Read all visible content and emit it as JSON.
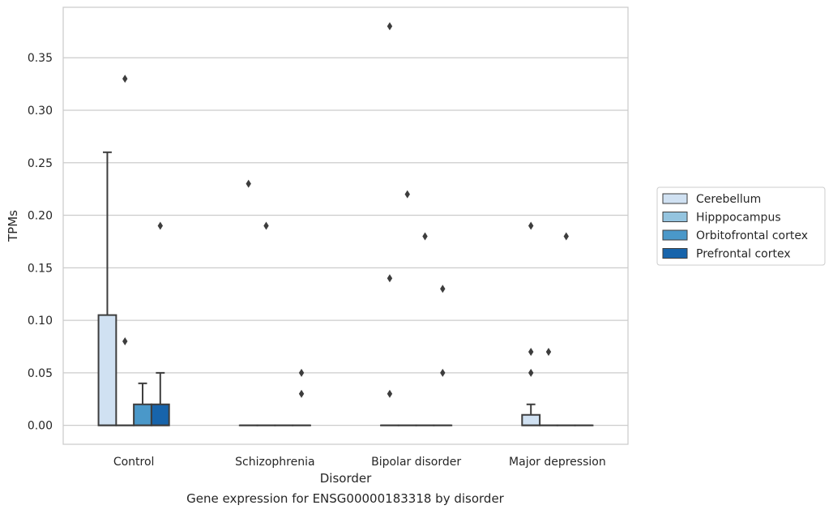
{
  "caption": "Gene expression for ENSG00000183318 by disorder",
  "chart_data": {
    "type": "box",
    "xlabel": "Disorder",
    "ylabel": "TPMs",
    "ylim": [
      -0.018,
      0.398
    ],
    "yticks": [
      "0.00",
      "0.05",
      "0.10",
      "0.15",
      "0.20",
      "0.25",
      "0.30",
      "0.35"
    ],
    "grid": "horizontal",
    "legend_position": "right",
    "categories": [
      "Control",
      "Schizophrenia",
      "Bipolar disorder",
      "Major depression"
    ],
    "series": [
      {
        "name": "Cerebellum",
        "color": "#d0e1f2",
        "boxes": [
          {
            "q1": 0,
            "median": 0,
            "q3": 0.105,
            "whisker_low": 0,
            "whisker_high": 0.26,
            "outliers": []
          },
          {
            "q1": 0,
            "median": 0,
            "q3": 0,
            "whisker_low": 0,
            "whisker_high": 0,
            "outliers": [
              0.23
            ]
          },
          {
            "q1": 0,
            "median": 0,
            "q3": 0,
            "whisker_low": 0,
            "whisker_high": 0,
            "outliers": [
              0.38,
              0.14,
              0.03
            ]
          },
          {
            "q1": 0,
            "median": 0,
            "q3": 0.01,
            "whisker_low": 0,
            "whisker_high": 0.02,
            "outliers": [
              0.19,
              0.07,
              0.05
            ]
          }
        ]
      },
      {
        "name": "Hipppocampus",
        "color": "#94c4df",
        "boxes": [
          {
            "q1": 0,
            "median": 0,
            "q3": 0,
            "whisker_low": 0,
            "whisker_high": 0,
            "outliers": [
              0.33,
              0.08
            ]
          },
          {
            "q1": 0,
            "median": 0,
            "q3": 0,
            "whisker_low": 0,
            "whisker_high": 0,
            "outliers": [
              0.19
            ]
          },
          {
            "q1": 0,
            "median": 0,
            "q3": 0,
            "whisker_low": 0,
            "whisker_high": 0,
            "outliers": [
              0.22
            ]
          },
          {
            "q1": 0,
            "median": 0,
            "q3": 0,
            "whisker_low": 0,
            "whisker_high": 0,
            "outliers": [
              0.07
            ]
          }
        ]
      },
      {
        "name": "Orbitofrontal cortex",
        "color": "#4a98c9",
        "boxes": [
          {
            "q1": 0,
            "median": 0,
            "q3": 0.02,
            "whisker_low": 0,
            "whisker_high": 0.04,
            "outliers": []
          },
          {
            "q1": 0,
            "median": 0,
            "q3": 0,
            "whisker_low": 0,
            "whisker_high": 0,
            "outliers": []
          },
          {
            "q1": 0,
            "median": 0,
            "q3": 0,
            "whisker_low": 0,
            "whisker_high": 0,
            "outliers": [
              0.18
            ]
          },
          {
            "q1": 0,
            "median": 0,
            "q3": 0,
            "whisker_low": 0,
            "whisker_high": 0,
            "outliers": [
              0.18
            ]
          }
        ]
      },
      {
        "name": "Prefrontal cortex",
        "color": "#1764ab",
        "boxes": [
          {
            "q1": 0,
            "median": 0,
            "q3": 0.02,
            "whisker_low": 0,
            "whisker_high": 0.05,
            "outliers": [
              0.19
            ]
          },
          {
            "q1": 0,
            "median": 0,
            "q3": 0,
            "whisker_low": 0,
            "whisker_high": 0,
            "outliers": [
              0.05,
              0.03
            ]
          },
          {
            "q1": 0,
            "median": 0,
            "q3": 0,
            "whisker_low": 0,
            "whisker_high": 0,
            "outliers": [
              0.13,
              0.05
            ]
          },
          {
            "q1": 0,
            "median": 0,
            "q3": 0,
            "whisker_low": 0,
            "whisker_high": 0,
            "outliers": []
          }
        ]
      }
    ]
  }
}
